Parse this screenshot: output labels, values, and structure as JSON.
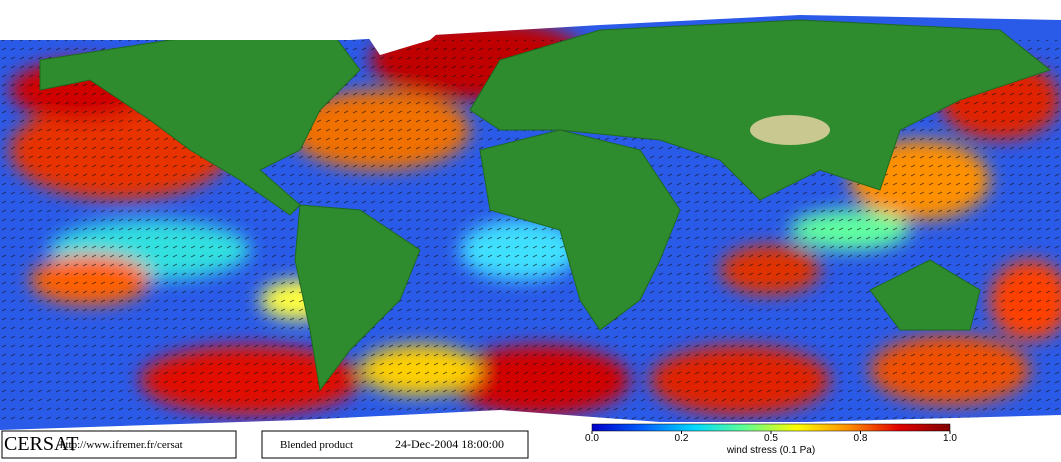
{
  "footer": {
    "logo": "CERSAT",
    "url": "http://www.ifremer.fr/cersat",
    "product": "Blended product",
    "date": "24-Dec-2004 18:00:00"
  },
  "colorbar": {
    "ticks": [
      {
        "value": 0,
        "label": "0.0"
      },
      0.2,
      0.5,
      0.8,
      {
        "value": 1,
        "label": "1.0"
      }
    ],
    "colors": [
      "#0000c8",
      "#0060ff",
      "#00d8ff",
      "#60ff90",
      "#ffff00",
      "#ff9000",
      "#e00000",
      "#800000"
    ],
    "label": "wind stress (0.1 Pa)"
  }
}
